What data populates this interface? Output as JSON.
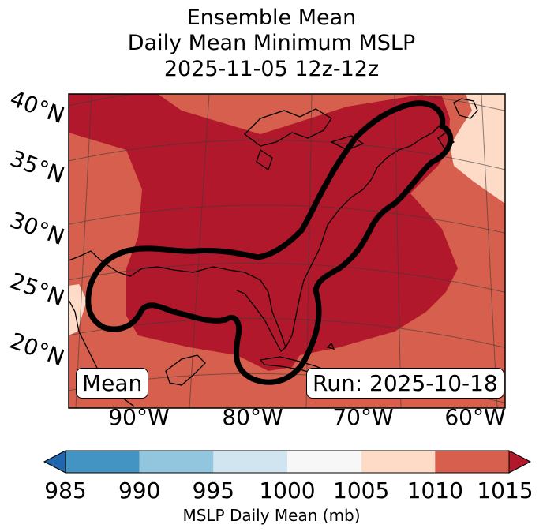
{
  "title": {
    "line1": "Ensemble Mean",
    "line2": "Daily Mean Minimum MSLP",
    "line3": "2025-11-05 12z-12z"
  },
  "map": {
    "lat_labels": [
      "40°N",
      "35°N",
      "30°N",
      "25°N",
      "20°N"
    ],
    "lon_labels": [
      "90°W",
      "80°W",
      "70°W",
      "60°W"
    ],
    "mean_box": "Mean",
    "run_box": "Run: 2025-10-18",
    "contour_icon": "black-contour-outline",
    "fill_colors": {
      "c1005_1010": "#fddbc7",
      "c1010_1015": "#d6604d",
      "c1015_plus": "#b2182b"
    }
  },
  "colorbar": {
    "label": "MSLP Daily Mean (mb)",
    "ticks": [
      "985",
      "990",
      "995",
      "1000",
      "1005",
      "1010",
      "1015"
    ],
    "colors": [
      "#2166ac",
      "#4393c3",
      "#92c5de",
      "#d1e5f0",
      "#f7f7f7",
      "#fddbc7",
      "#d6604d",
      "#b2182b"
    ]
  }
}
